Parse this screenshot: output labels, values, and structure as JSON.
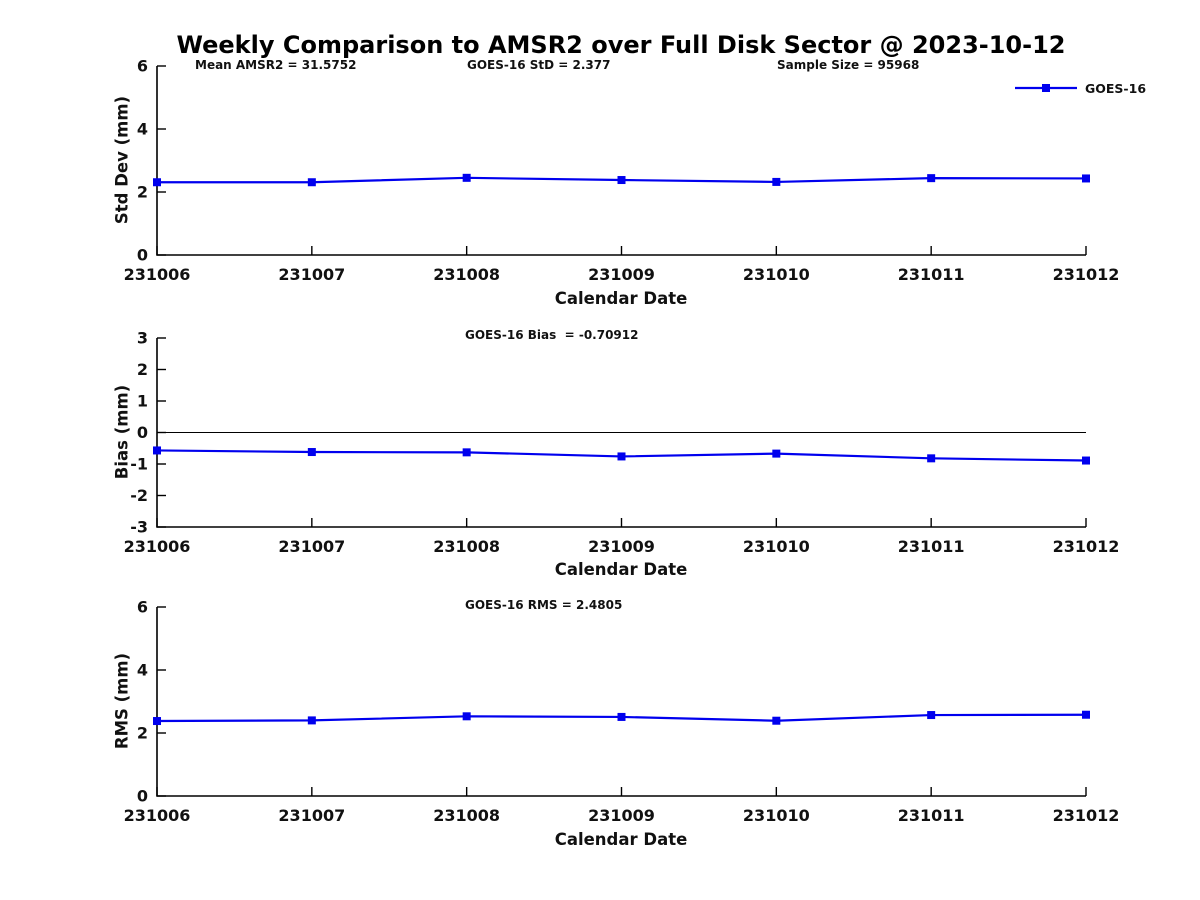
{
  "figure": {
    "title": "Weekly Comparison to AMSR2 over Full Disk Sector @ 2023-10-12",
    "legend": {
      "label": "GOES-16",
      "color": "#0000EE"
    },
    "background": "#ffffff"
  },
  "chart_data": [
    {
      "type": "line",
      "name": "std-dev",
      "categories": [
        "231006",
        "231007",
        "231008",
        "231009",
        "231010",
        "231011",
        "231012"
      ],
      "series": [
        {
          "name": "GOES-16",
          "color": "#0000EE",
          "marker": "square",
          "values": [
            2.31,
            2.31,
            2.45,
            2.38,
            2.32,
            2.44,
            2.43
          ]
        }
      ],
      "title": "",
      "xlabel": "Calendar Date",
      "ylabel": "Std Dev (mm)",
      "ylim": [
        0,
        6
      ],
      "yticks": [
        0,
        2,
        4,
        6
      ],
      "grid": false,
      "legend_position": "top-right",
      "annotations": [
        {
          "text": "Mean AMSR2 = 31.5752"
        },
        {
          "text": "GOES-16 StD = 2.377"
        },
        {
          "text": "Sample Size = 95968"
        }
      ]
    },
    {
      "type": "line",
      "name": "bias",
      "categories": [
        "231006",
        "231007",
        "231008",
        "231009",
        "231010",
        "231011",
        "231012"
      ],
      "series": [
        {
          "name": "GOES-16",
          "color": "#0000EE",
          "marker": "square",
          "values": [
            -0.57,
            -0.62,
            -0.63,
            -0.76,
            -0.67,
            -0.82,
            -0.89
          ]
        }
      ],
      "title": "",
      "xlabel": "Calendar Date",
      "ylabel": "Bias (mm)",
      "ylim": [
        -3,
        3
      ],
      "yticks": [
        -3,
        -2,
        -1,
        0,
        1,
        2,
        3
      ],
      "grid": false,
      "zero_line": true,
      "annotations": [
        {
          "text": "GOES-16 Bias  = -0.70912"
        }
      ]
    },
    {
      "type": "line",
      "name": "rms",
      "categories": [
        "231006",
        "231007",
        "231008",
        "231009",
        "231010",
        "231011",
        "231012"
      ],
      "series": [
        {
          "name": "GOES-16",
          "color": "#0000EE",
          "marker": "square",
          "values": [
            2.38,
            2.4,
            2.53,
            2.51,
            2.39,
            2.57,
            2.58
          ]
        }
      ],
      "title": "",
      "xlabel": "Calendar Date",
      "ylabel": "RMS (mm)",
      "ylim": [
        0,
        6
      ],
      "yticks": [
        0,
        2,
        4,
        6
      ],
      "grid": false,
      "annotations": [
        {
          "text": "GOES-16 RMS = 2.4805"
        }
      ]
    }
  ]
}
